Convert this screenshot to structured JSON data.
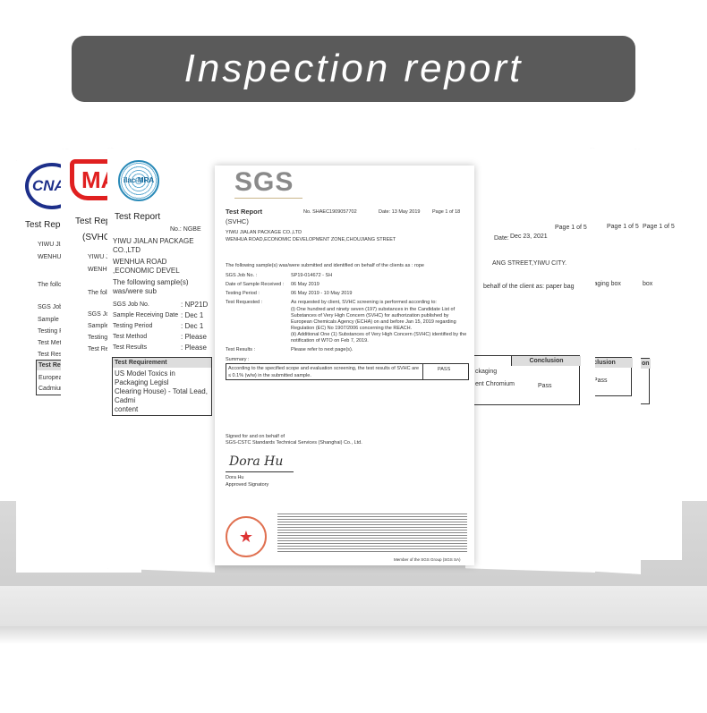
{
  "banner": {
    "title": "Inspection report"
  },
  "papers": {
    "cnas": {
      "logo": "CNAS",
      "title": "Test Report",
      "lines": [
        "YIWU JIA",
        "WENHUA",
        "The follow",
        "SGS Job N",
        "Sample Re",
        "Testing Pe",
        "Test Metho",
        "Test Resu"
      ],
      "table_header": "Test Rep",
      "table_rows": [
        "European",
        "Cadmium"
      ]
    },
    "cma": {
      "logo": "MA",
      "title": "Test Repo",
      "subtitle": "(SVHC)",
      "lines": [
        "YIWU JI",
        "WENHU",
        "The follo",
        "SGS Job",
        "Sample R",
        "Testing F",
        "Test Req"
      ]
    },
    "ilac": {
      "logo": "ilac-MRA",
      "title": "Test Report",
      "no": "No.:  NGBE",
      "lines": [
        "YIWU JIALAN PACKAGE CO.,LTD",
        "WENHUA ROAD ,ECONOMIC DEVEL",
        "The following sample(s) was/were sub"
      ],
      "fields": [
        [
          "SGS Job No.",
          ": NP21D"
        ],
        [
          "Sample Receiving Date",
          ": Dec 1"
        ],
        [
          "Testing Period",
          ": Dec 1"
        ],
        [
          "Test Method",
          ": Please"
        ],
        [
          "Test Results",
          ": Please"
        ]
      ],
      "table_header": "Test Requirement",
      "table_rows": [
        "US Model Toxics in Packaging Legisl",
        "Clearing House) - Total Lead, Cadmi",
        "content"
      ]
    },
    "sgs": {
      "logo": "SGS",
      "title": "Test Report",
      "subtitle": "(SVHC)",
      "no": "No. SHAEC1909057702",
      "date": "Date: 13 May 2019",
      "page": "Page 1 of 18",
      "company": "YIWU JIALAN PACKAGE CO.,LTD",
      "address": "WENHUA ROAD,ECONOMIC DEVELOPMENT ZONE,CHOUJIANG STREET",
      "intro": "The following sample(s) was/were submitted and identified on behalf of the clients as : rope",
      "fields": [
        {
          "label": "SGS Job No. :",
          "value": "SP19-014672 - SH"
        },
        {
          "label": "Date of Sample Received :",
          "value": "06 May 2019"
        },
        {
          "label": "Testing Period :",
          "value": "06 May 2019 - 10 May 2019"
        },
        {
          "label": "Test Requested :",
          "value": "As requested by client, SVHC screening is performed according to:"
        }
      ],
      "requested_lines": [
        "(i) One hundred and ninety seven (197) substances in the Candidate List of",
        "Substances of Very High Concern (SVHC) for authorization published by",
        "European Chemicals Agency (ECHA) on and before Jan 15, 2019 regarding",
        "Regulation (EC) No 1907/2006 concerning the REACH.",
        "(ii) Additional One (1) Substances of Very High Concern (SVHC) identified by the",
        "notification of WTO on Feb 7, 2019."
      ],
      "results_label": "Test Results :",
      "results_value": "Please refer to next page(s).",
      "summary_label": "Summary :",
      "summary_text_1": "According to the specified scope and evaluation screening, the test results of SVHC are",
      "summary_text_2": "≤ 0.1% (w/w) in the submitted sample.",
      "summary_result": "PASS",
      "signed_1": "Signed for and on behalf of",
      "signed_2": "SGS-CSTC Standards Technical Services (Shanghai) Co., Ltd.",
      "signature": "Dora Hu",
      "signer": "Dora Hu",
      "signer_title": "Approved Signatory",
      "member": "Member of the SGS Group (SGS SA)"
    },
    "right1": {
      "date_label": "Date:",
      "date": "Dec 23, 2021",
      "page": "Page 1 of 5",
      "address": "ANG STREET,YIWU CITY.",
      "intro": "behalf of the client as: paper bag",
      "table_header": "Conclusion",
      "rows": [
        "ckaging",
        "ent Chromium"
      ],
      "result": "Pass"
    },
    "right2": {
      "page": "Page 1 of 5",
      "intro": "kaging box",
      "table_header": "nclusion",
      "result": "Pass"
    },
    "right3": {
      "page": "Page 1 of 5",
      "intro": "box",
      "table_header": "on"
    }
  }
}
